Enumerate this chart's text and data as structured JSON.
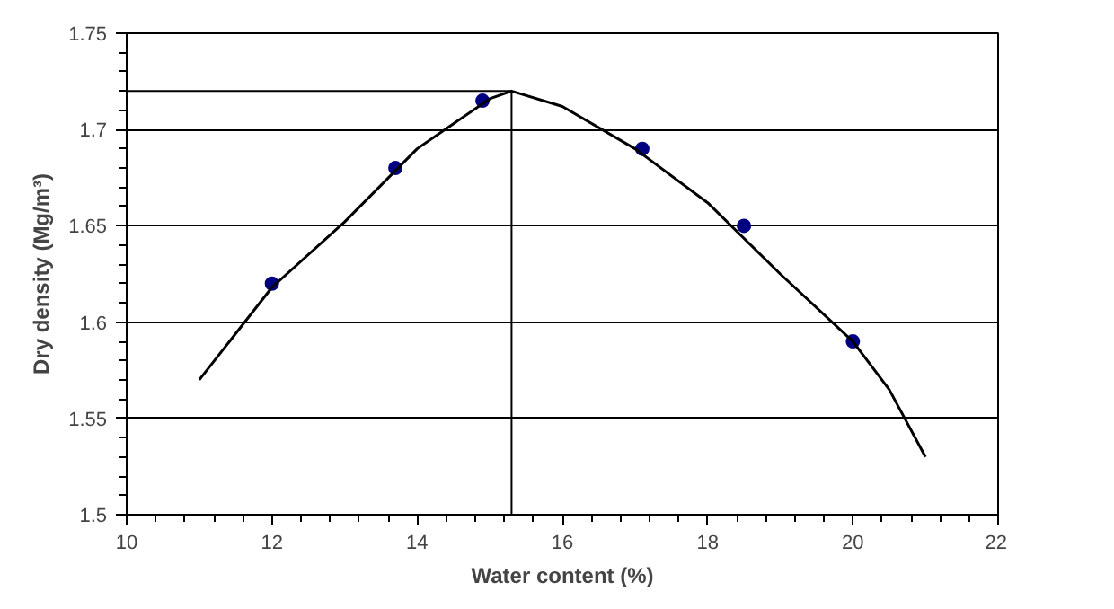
{
  "chart_data": {
    "type": "scatter",
    "xlabel": "Water content (%)",
    "ylabel": "Dry density (Mg/m³)",
    "series": [
      {
        "color": "#000080",
        "marker": "circle",
        "x": [
          12,
          13.7,
          14.9,
          17.1,
          18.5,
          20
        ],
        "values": [
          1.62,
          1.68,
          1.715,
          1.69,
          1.65,
          1.59
        ]
      },
      {
        "type": "line",
        "color": "#000000",
        "marker": "none",
        "line_style": "solid",
        "x": [
          11,
          12,
          13,
          14,
          15,
          15.3,
          16,
          17,
          18,
          19,
          20,
          20.5,
          21
        ],
        "values": [
          1.57,
          1.618,
          1.652,
          1.69,
          1.716,
          1.72,
          1.712,
          1.69,
          1.662,
          1.625,
          1.59,
          1.565,
          1.53
        ]
      }
    ],
    "xlim": [
      10,
      22
    ],
    "xticks": [
      10,
      12,
      14,
      16,
      18,
      20,
      22
    ],
    "ylim": [
      1.5,
      1.75
    ],
    "yticks": [
      1.5,
      1.55,
      1.6,
      1.65,
      1.7,
      1.75
    ],
    "grid": "y",
    "ref_lines": [
      {
        "axis": "y",
        "value": 1.72,
        "color": "#000000"
      },
      {
        "axis": "x",
        "value": 15.3,
        "color": "#000000"
      }
    ]
  }
}
